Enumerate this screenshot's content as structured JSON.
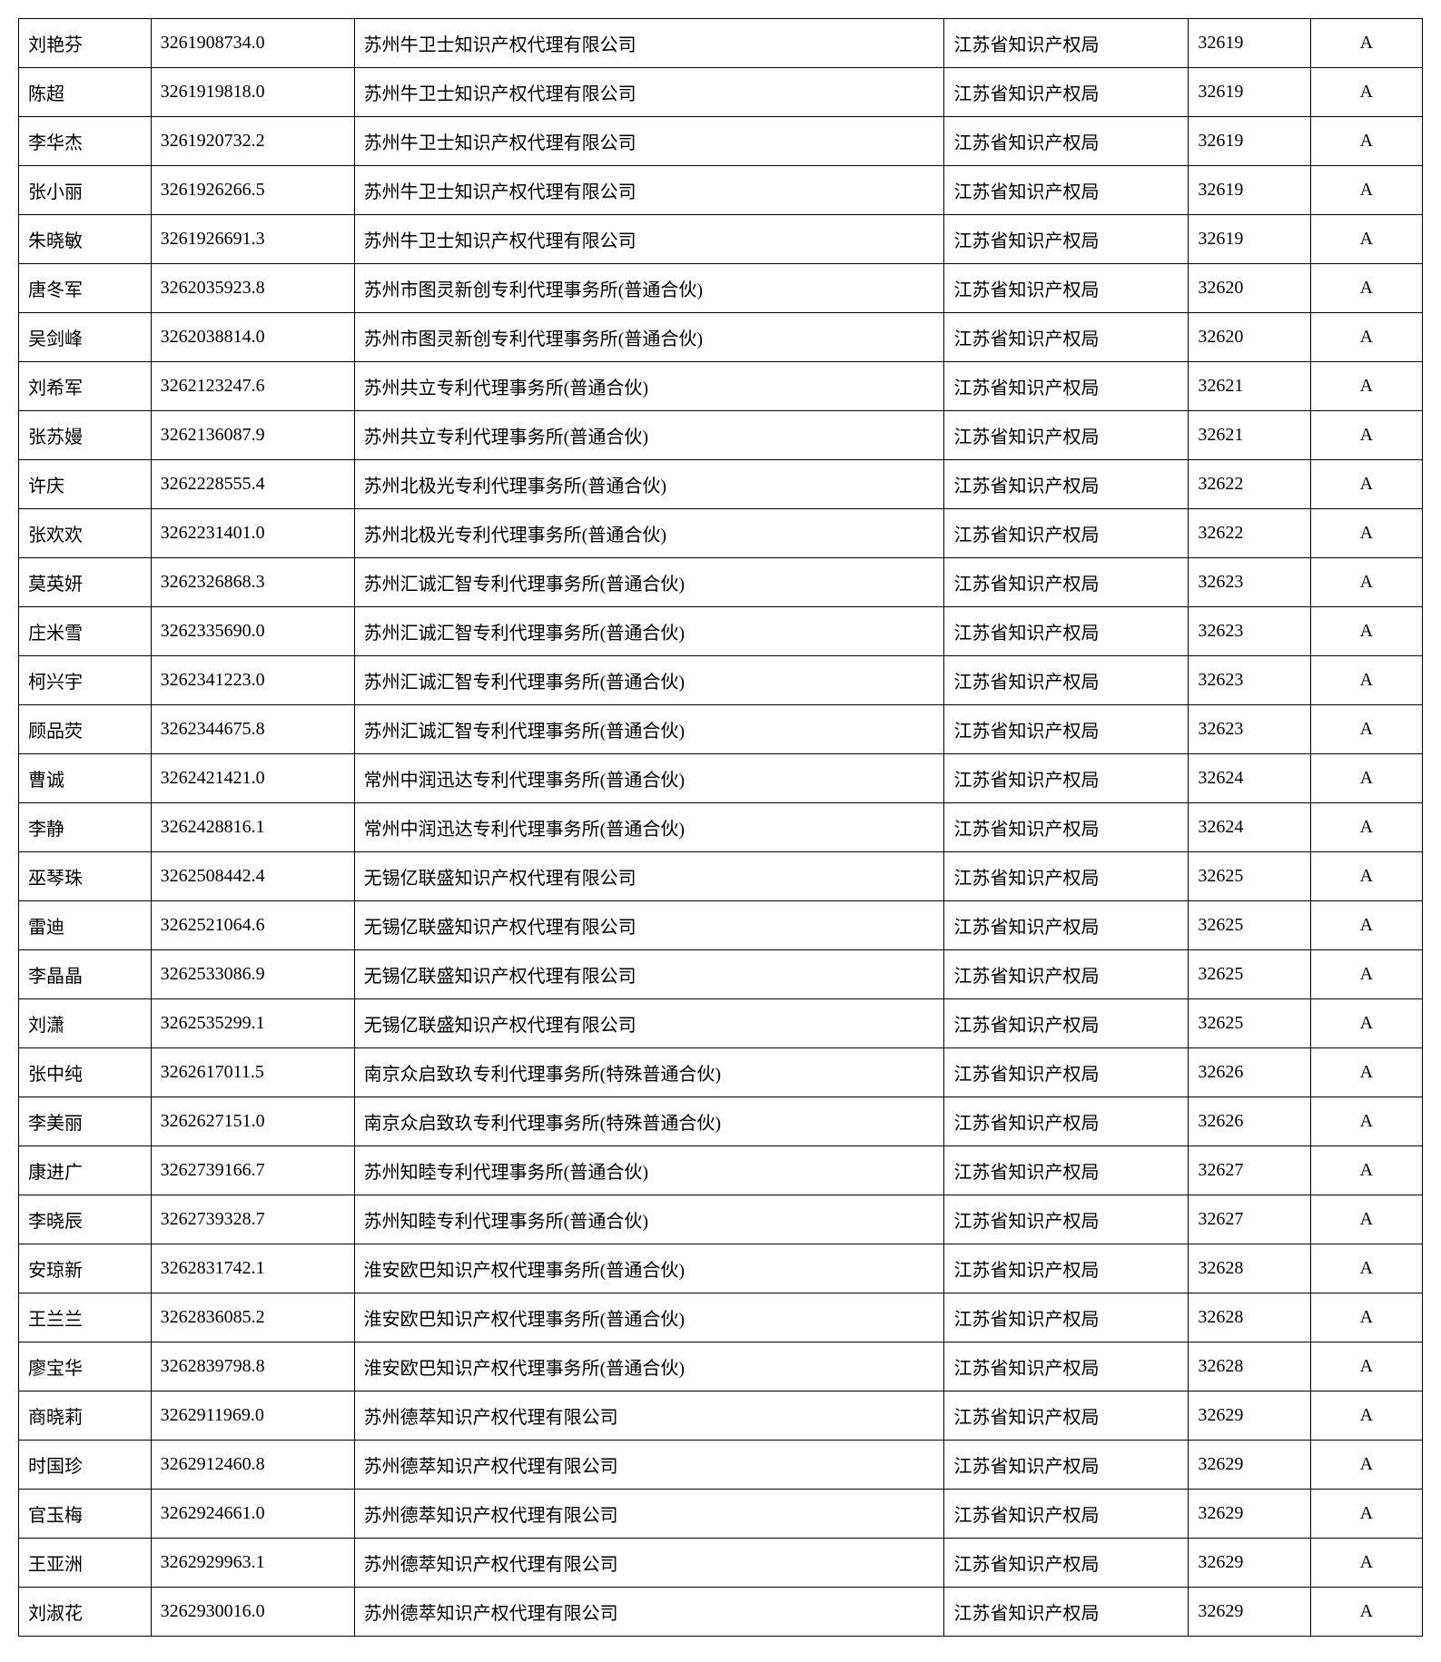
{
  "table": {
    "columns": [
      {
        "key": "name",
        "class": "col-name"
      },
      {
        "key": "id",
        "class": "col-id"
      },
      {
        "key": "company",
        "class": "col-company"
      },
      {
        "key": "bureau",
        "class": "col-bureau"
      },
      {
        "key": "code",
        "class": "col-code"
      },
      {
        "key": "grade",
        "class": "col-grade"
      }
    ],
    "rows": [
      {
        "name": "刘艳芬",
        "id": "3261908734.0",
        "company": "苏州牛卫士知识产权代理有限公司",
        "bureau": "江苏省知识产权局",
        "code": "32619",
        "grade": "A"
      },
      {
        "name": "陈超",
        "id": "3261919818.0",
        "company": "苏州牛卫士知识产权代理有限公司",
        "bureau": "江苏省知识产权局",
        "code": "32619",
        "grade": "A"
      },
      {
        "name": "李华杰",
        "id": "3261920732.2",
        "company": "苏州牛卫士知识产权代理有限公司",
        "bureau": "江苏省知识产权局",
        "code": "32619",
        "grade": "A"
      },
      {
        "name": "张小丽",
        "id": "3261926266.5",
        "company": "苏州牛卫士知识产权代理有限公司",
        "bureau": "江苏省知识产权局",
        "code": "32619",
        "grade": "A"
      },
      {
        "name": "朱晓敏",
        "id": "3261926691.3",
        "company": "苏州牛卫士知识产权代理有限公司",
        "bureau": "江苏省知识产权局",
        "code": "32619",
        "grade": "A"
      },
      {
        "name": "唐冬军",
        "id": "3262035923.8",
        "company": "苏州市图灵新创专利代理事务所(普通合伙)",
        "bureau": "江苏省知识产权局",
        "code": "32620",
        "grade": "A"
      },
      {
        "name": "吴剑峰",
        "id": "3262038814.0",
        "company": "苏州市图灵新创专利代理事务所(普通合伙)",
        "bureau": "江苏省知识产权局",
        "code": "32620",
        "grade": "A"
      },
      {
        "name": "刘希军",
        "id": "3262123247.6",
        "company": "苏州共立专利代理事务所(普通合伙)",
        "bureau": "江苏省知识产权局",
        "code": "32621",
        "grade": "A"
      },
      {
        "name": "张苏嫚",
        "id": "3262136087.9",
        "company": "苏州共立专利代理事务所(普通合伙)",
        "bureau": "江苏省知识产权局",
        "code": "32621",
        "grade": "A"
      },
      {
        "name": "许庆",
        "id": "3262228555.4",
        "company": "苏州北极光专利代理事务所(普通合伙)",
        "bureau": "江苏省知识产权局",
        "code": "32622",
        "grade": "A"
      },
      {
        "name": "张欢欢",
        "id": "3262231401.0",
        "company": "苏州北极光专利代理事务所(普通合伙)",
        "bureau": "江苏省知识产权局",
        "code": "32622",
        "grade": "A"
      },
      {
        "name": "莫英妍",
        "id": "3262326868.3",
        "company": "苏州汇诚汇智专利代理事务所(普通合伙)",
        "bureau": "江苏省知识产权局",
        "code": "32623",
        "grade": "A"
      },
      {
        "name": "庄米雪",
        "id": "3262335690.0",
        "company": "苏州汇诚汇智专利代理事务所(普通合伙)",
        "bureau": "江苏省知识产权局",
        "code": "32623",
        "grade": "A"
      },
      {
        "name": "柯兴宇",
        "id": "3262341223.0",
        "company": "苏州汇诚汇智专利代理事务所(普通合伙)",
        "bureau": "江苏省知识产权局",
        "code": "32623",
        "grade": "A"
      },
      {
        "name": "顾品荧",
        "id": "3262344675.8",
        "company": "苏州汇诚汇智专利代理事务所(普通合伙)",
        "bureau": "江苏省知识产权局",
        "code": "32623",
        "grade": "A"
      },
      {
        "name": "曹诚",
        "id": "3262421421.0",
        "company": "常州中润迅达专利代理事务所(普通合伙)",
        "bureau": "江苏省知识产权局",
        "code": "32624",
        "grade": "A"
      },
      {
        "name": "李静",
        "id": "3262428816.1",
        "company": "常州中润迅达专利代理事务所(普通合伙)",
        "bureau": "江苏省知识产权局",
        "code": "32624",
        "grade": "A"
      },
      {
        "name": "巫琴珠",
        "id": "3262508442.4",
        "company": "无锡亿联盛知识产权代理有限公司",
        "bureau": "江苏省知识产权局",
        "code": "32625",
        "grade": "A"
      },
      {
        "name": "雷迪",
        "id": "3262521064.6",
        "company": "无锡亿联盛知识产权代理有限公司",
        "bureau": "江苏省知识产权局",
        "code": "32625",
        "grade": "A"
      },
      {
        "name": "李晶晶",
        "id": "3262533086.9",
        "company": "无锡亿联盛知识产权代理有限公司",
        "bureau": "江苏省知识产权局",
        "code": "32625",
        "grade": "A"
      },
      {
        "name": "刘潇",
        "id": "3262535299.1",
        "company": "无锡亿联盛知识产权代理有限公司",
        "bureau": "江苏省知识产权局",
        "code": "32625",
        "grade": "A"
      },
      {
        "name": "张中纯",
        "id": "3262617011.5",
        "company": "南京众启致玖专利代理事务所(特殊普通合伙)",
        "bureau": "江苏省知识产权局",
        "code": "32626",
        "grade": "A"
      },
      {
        "name": "李美丽",
        "id": "3262627151.0",
        "company": "南京众启致玖专利代理事务所(特殊普通合伙)",
        "bureau": "江苏省知识产权局",
        "code": "32626",
        "grade": "A"
      },
      {
        "name": "康进广",
        "id": "3262739166.7",
        "company": "苏州知睦专利代理事务所(普通合伙)",
        "bureau": "江苏省知识产权局",
        "code": "32627",
        "grade": "A"
      },
      {
        "name": "李晓辰",
        "id": "3262739328.7",
        "company": "苏州知睦专利代理事务所(普通合伙)",
        "bureau": "江苏省知识产权局",
        "code": "32627",
        "grade": "A"
      },
      {
        "name": "安琼新",
        "id": "3262831742.1",
        "company": "淮安欧巴知识产权代理事务所(普通合伙)",
        "bureau": "江苏省知识产权局",
        "code": "32628",
        "grade": "A"
      },
      {
        "name": "王兰兰",
        "id": "3262836085.2",
        "company": "淮安欧巴知识产权代理事务所(普通合伙)",
        "bureau": "江苏省知识产权局",
        "code": "32628",
        "grade": "A"
      },
      {
        "name": "廖宝华",
        "id": "3262839798.8",
        "company": "淮安欧巴知识产权代理事务所(普通合伙)",
        "bureau": "江苏省知识产权局",
        "code": "32628",
        "grade": "A"
      },
      {
        "name": "商晓莉",
        "id": "3262911969.0",
        "company": "苏州德萃知识产权代理有限公司",
        "bureau": "江苏省知识产权局",
        "code": "32629",
        "grade": "A"
      },
      {
        "name": "时国珍",
        "id": "3262912460.8",
        "company": "苏州德萃知识产权代理有限公司",
        "bureau": "江苏省知识产权局",
        "code": "32629",
        "grade": "A"
      },
      {
        "name": "官玉梅",
        "id": "3262924661.0",
        "company": "苏州德萃知识产权代理有限公司",
        "bureau": "江苏省知识产权局",
        "code": "32629",
        "grade": "A"
      },
      {
        "name": "王亚洲",
        "id": "3262929963.1",
        "company": "苏州德萃知识产权代理有限公司",
        "bureau": "江苏省知识产权局",
        "code": "32629",
        "grade": "A"
      },
      {
        "name": "刘淑花",
        "id": "3262930016.0",
        "company": "苏州德萃知识产权代理有限公司",
        "bureau": "江苏省知识产权局",
        "code": "32629",
        "grade": "A"
      }
    ],
    "border_color": "#000000",
    "background_color": "#ffffff",
    "text_color": "#000000",
    "font_size": 20
  }
}
